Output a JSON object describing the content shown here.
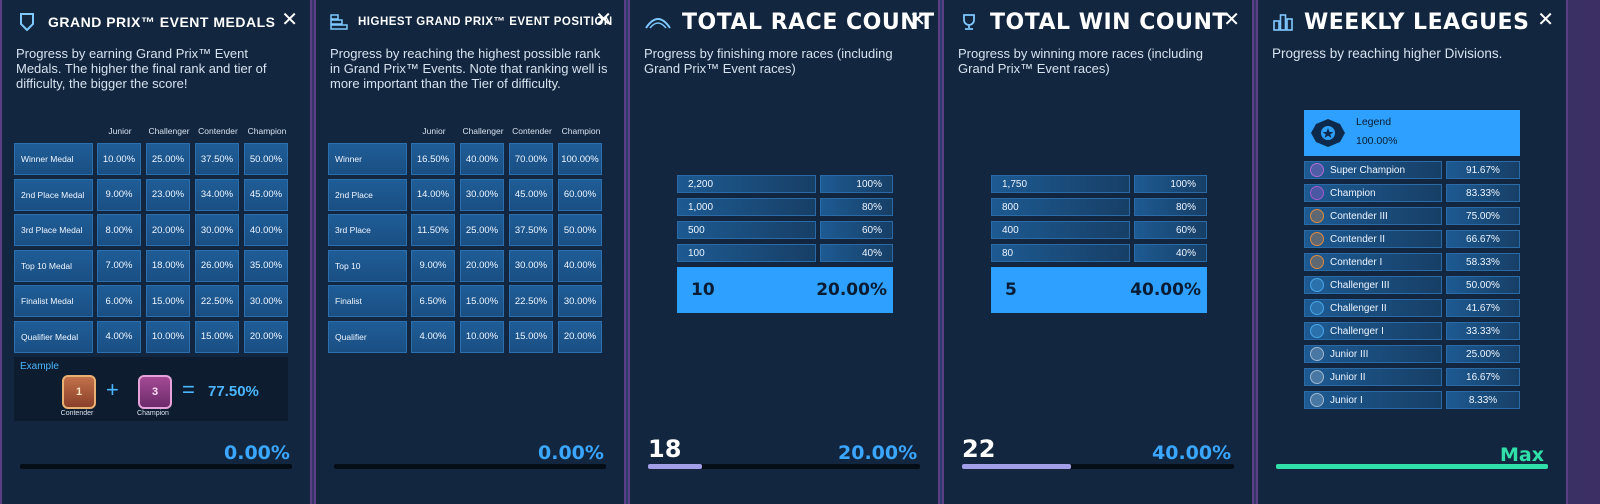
{
  "panels": {
    "medals": {
      "title": "GRAND PRIX™ EVENT MEDALS",
      "description": "Progress by earning Grand Prix™ Event Medals. The higher the final rank and tier of difficulty, the bigger the score!",
      "columns": [
        "Junior",
        "Challenger",
        "Contender",
        "Champion"
      ],
      "rows": [
        {
          "label": "Winner Medal",
          "values": [
            "10.00%",
            "25.00%",
            "37.50%",
            "50.00%"
          ]
        },
        {
          "label": "2nd Place Medal",
          "values": [
            "9.00%",
            "23.00%",
            "34.00%",
            "45.00%"
          ]
        },
        {
          "label": "3rd Place Medal",
          "values": [
            "8.00%",
            "20.00%",
            "30.00%",
            "40.00%"
          ]
        },
        {
          "label": "Top 10 Medal",
          "values": [
            "7.00%",
            "18.00%",
            "26.00%",
            "35.00%"
          ]
        },
        {
          "label": "Finalist Medal",
          "values": [
            "6.00%",
            "15.00%",
            "22.50%",
            "30.00%"
          ]
        },
        {
          "label": "Qualifier Medal",
          "values": [
            "4.00%",
            "10.00%",
            "15.00%",
            "20.00%"
          ]
        }
      ],
      "example": {
        "label": "Example",
        "medal1_caption": "Contender",
        "medal2_caption": "Champion",
        "plus": "+",
        "equals": "=",
        "result": "77.50%"
      },
      "progress_pct": "0.00%",
      "progress_fraction": 0
    },
    "position": {
      "title": "HIGHEST GRAND PRIX™ EVENT POSITION",
      "description": "Progress by reaching the highest possible rank in Grand Prix™ Events. Note that ranking well is more important than the Tier of difficulty.",
      "columns": [
        "Junior",
        "Challenger",
        "Contender",
        "Champion"
      ],
      "rows": [
        {
          "label": "Winner",
          "values": [
            "16.50%",
            "40.00%",
            "70.00%",
            "100.00%"
          ]
        },
        {
          "label": "2nd Place",
          "values": [
            "14.00%",
            "30.00%",
            "45.00%",
            "60.00%"
          ]
        },
        {
          "label": "3rd Place",
          "values": [
            "11.50%",
            "25.00%",
            "37.50%",
            "50.00%"
          ]
        },
        {
          "label": "Top 10",
          "values": [
            "9.00%",
            "20.00%",
            "30.00%",
            "40.00%"
          ]
        },
        {
          "label": "Finalist",
          "values": [
            "6.50%",
            "15.00%",
            "22.50%",
            "30.00%"
          ]
        },
        {
          "label": "Qualifier",
          "values": [
            "4.00%",
            "10.00%",
            "15.00%",
            "20.00%"
          ]
        }
      ],
      "progress_pct": "0.00%",
      "progress_fraction": 0
    },
    "races": {
      "title": "TOTAL RACE COUNT",
      "description": "Progress by finishing more races (including Grand Prix™ Event races)",
      "tiers": [
        {
          "count": "2,200",
          "pct": "100%"
        },
        {
          "count": "1,000",
          "pct": "80%"
        },
        {
          "count": "500",
          "pct": "60%"
        },
        {
          "count": "100",
          "pct": "40%"
        }
      ],
      "current": {
        "count": "10",
        "pct": "20.00%"
      },
      "footer_value": "18",
      "progress_pct": "20.00%",
      "progress_fraction": 0.2
    },
    "wins": {
      "title": "TOTAL WIN COUNT",
      "description": "Progress by winning more races (including Grand Prix™ Event races)",
      "tiers": [
        {
          "count": "1,750",
          "pct": "100%"
        },
        {
          "count": "800",
          "pct": "80%"
        },
        {
          "count": "400",
          "pct": "60%"
        },
        {
          "count": "80",
          "pct": "40%"
        }
      ],
      "current": {
        "count": "5",
        "pct": "40.00%"
      },
      "footer_value": "22",
      "progress_pct": "40.00%",
      "progress_fraction": 0.4
    },
    "leagues": {
      "title": "WEEKLY LEAGUES",
      "description": "Progress by reaching higher Divisions.",
      "legend": {
        "name": "Legend",
        "pct": "100.00%"
      },
      "divisions": [
        {
          "name": "Super Champion",
          "pct": "91.67%",
          "color": "#b06ad8"
        },
        {
          "name": "Champion",
          "pct": "83.33%",
          "color": "#a65bd0"
        },
        {
          "name": "Contender III",
          "pct": "75.00%",
          "color": "#e08a3c"
        },
        {
          "name": "Contender II",
          "pct": "66.67%",
          "color": "#e08a3c"
        },
        {
          "name": "Contender I",
          "pct": "58.33%",
          "color": "#e08a3c"
        },
        {
          "name": "Challenger III",
          "pct": "50.00%",
          "color": "#47a6e8"
        },
        {
          "name": "Challenger II",
          "pct": "41.67%",
          "color": "#47a6e8"
        },
        {
          "name": "Challenger I",
          "pct": "33.33%",
          "color": "#47a6e8"
        },
        {
          "name": "Junior III",
          "pct": "25.00%",
          "color": "#9fb6cf"
        },
        {
          "name": "Junior II",
          "pct": "16.67%",
          "color": "#9fb6cf"
        },
        {
          "name": "Junior I",
          "pct": "8.33%",
          "color": "#9fb6cf"
        }
      ],
      "progress_label": "Max",
      "progress_fraction": 1
    }
  },
  "colors": {
    "accent_blue": "#2ea0ff",
    "progress_purple": "#a29ee8",
    "max_green": "#31e0a8"
  }
}
